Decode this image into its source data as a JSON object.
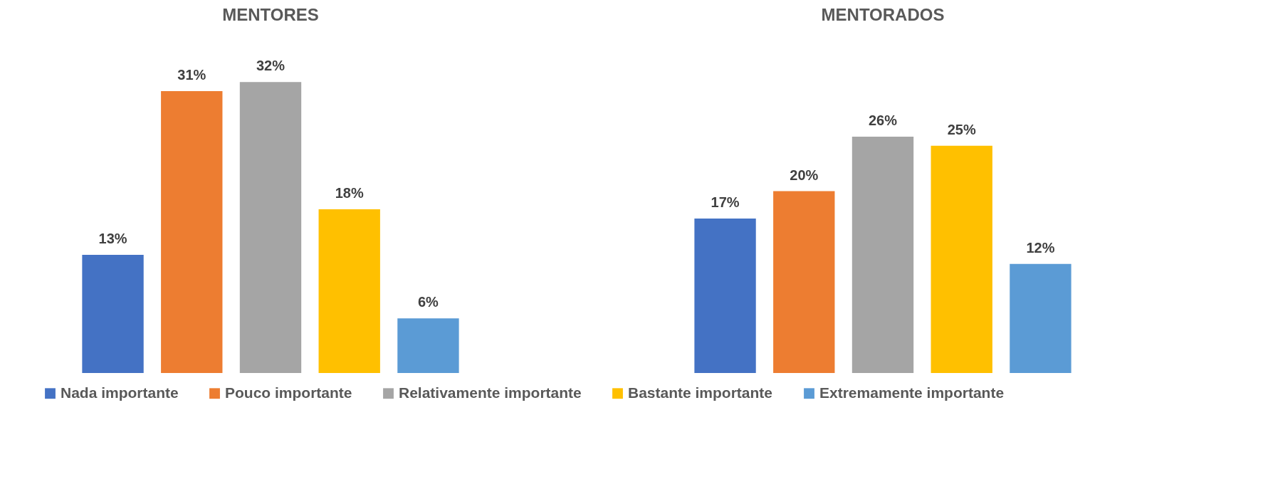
{
  "chart_data": [
    {
      "type": "bar",
      "title": "MENTORES",
      "categories": [
        null
      ],
      "legend": "bottom",
      "series": [
        {
          "name": "Nada importante",
          "color": "#4472c4",
          "values": [
            13
          ],
          "value_labels": [
            "13%"
          ]
        },
        {
          "name": "Pouco importante",
          "color": "#ed7d31",
          "values": [
            31
          ],
          "value_labels": [
            "31%"
          ]
        },
        {
          "name": "Relativamente importante",
          "color": "#a5a5a5",
          "values": [
            32
          ],
          "value_labels": [
            "32%"
          ]
        },
        {
          "name": "Bastante importante",
          "color": "#ffc000",
          "values": [
            18
          ],
          "value_labels": [
            "18%"
          ]
        },
        {
          "name": "Extremamente importante",
          "color": "#5b9bd5",
          "values": [
            6
          ],
          "value_labels": [
            "6%"
          ]
        }
      ]
    },
    {
      "type": "bar",
      "title": "MENTORADOS",
      "categories": [
        null
      ],
      "legend": "bottom",
      "series": [
        {
          "name": "Nada importante",
          "color": "#4472c4",
          "values": [
            17
          ],
          "value_labels": [
            "17%"
          ]
        },
        {
          "name": "Pouco importante",
          "color": "#ed7d31",
          "values": [
            20
          ],
          "value_labels": [
            "20%"
          ]
        },
        {
          "name": "Relativamente importante",
          "color": "#a5a5a5",
          "values": [
            26
          ],
          "value_labels": [
            "26%"
          ]
        },
        {
          "name": "Bastante importante",
          "color": "#ffc000",
          "values": [
            25
          ],
          "value_labels": [
            "25%"
          ]
        },
        {
          "name": "Extremamente importante",
          "color": "#5b9bd5",
          "values": [
            12
          ],
          "value_labels": [
            "12%"
          ]
        }
      ]
    }
  ]
}
